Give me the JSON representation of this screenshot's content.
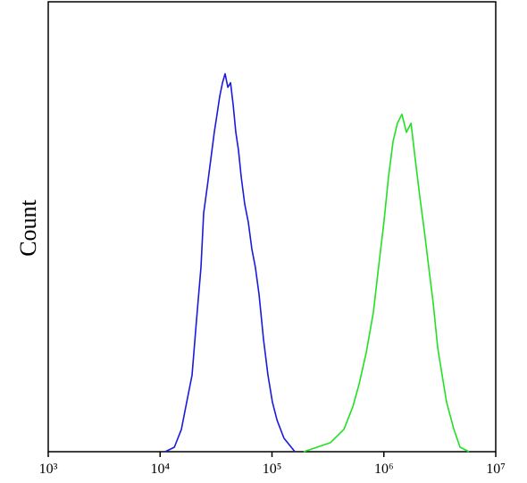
{
  "chart_data": {
    "type": "line",
    "ylabel": "Count",
    "xlim": [
      1000,
      10000000
    ],
    "xlog": true,
    "xticks": [
      {
        "value": 1000,
        "label": "10³"
      },
      {
        "value": 10000,
        "label": "10⁴"
      },
      {
        "value": 100000,
        "label": "10⁵"
      },
      {
        "value": 1000000,
        "label": "10⁶"
      },
      {
        "value": 10000000,
        "label": "10⁷"
      }
    ],
    "ylim": [
      0,
      100
    ],
    "series": [
      {
        "color": "#1a1adb",
        "x": [
          11100,
          13400,
          15500,
          17600,
          19300,
          21100,
          23200,
          24500,
          26400,
          28400,
          30500,
          32300,
          34100,
          36100,
          38100,
          40300,
          42600,
          45000,
          47500,
          50200,
          53100,
          57100,
          61400,
          66100,
          71100,
          76600,
          84000,
          92000,
          101000,
          111000,
          128000,
          160000
        ],
        "values": [
          0,
          1,
          5,
          12,
          17,
          29,
          41,
          53,
          59,
          65,
          71,
          75,
          79,
          82,
          84,
          81,
          82,
          77,
          71,
          67,
          61,
          55,
          51,
          45,
          41,
          35,
          25,
          17,
          11,
          7,
          3,
          0
        ]
      },
      {
        "color": "#22e022",
        "x": [
          192000,
          253000,
          333000,
          440000,
          528000,
          600000,
          695000,
          805000,
          916000,
          1000000,
          1100000,
          1210000,
          1320000,
          1450000,
          1590000,
          1750000,
          1910000,
          2090000,
          2300000,
          2520000,
          2760000,
          3030000,
          3320000,
          3640000,
          4220000,
          4800000,
          5770000
        ],
        "values": [
          0,
          1,
          2,
          5,
          10,
          15,
          22,
          31,
          43,
          51,
          61,
          69,
          73,
          75,
          71,
          73,
          65,
          57,
          49,
          41,
          33,
          23,
          17,
          11,
          5,
          1,
          0
        ]
      }
    ]
  }
}
